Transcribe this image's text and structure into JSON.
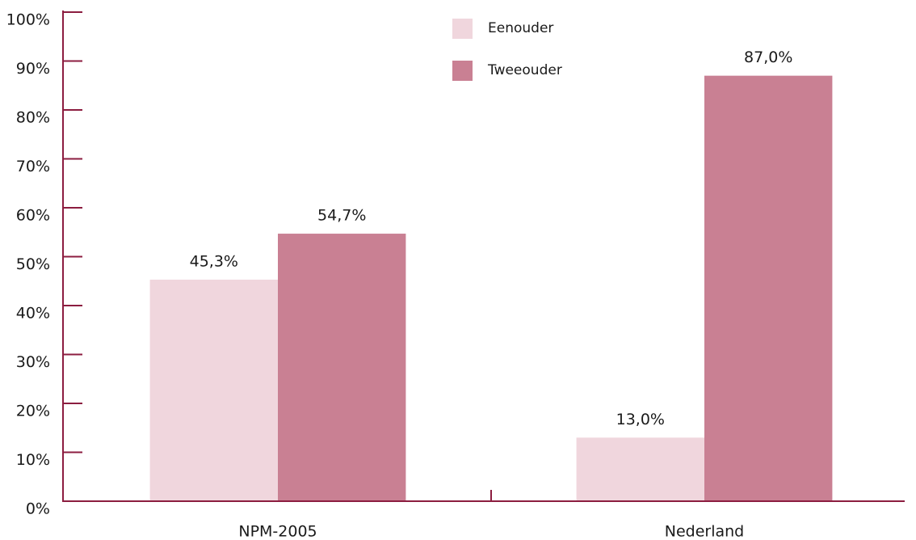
{
  "chart_data": {
    "type": "bar",
    "categories": [
      "NPM-2005",
      "Nederland"
    ],
    "series": [
      {
        "name": "Eenouder",
        "color": "#f0d6dd",
        "values": [
          45.3,
          13.0
        ],
        "value_labels": [
          "45,3%",
          "13,0%"
        ]
      },
      {
        "name": "Tweeouder",
        "color": "#c98093",
        "values": [
          54.7,
          87.0
        ],
        "value_labels": [
          "54,7%",
          "87,0%"
        ]
      }
    ],
    "ylim": [
      0,
      100
    ],
    "yticks": [
      {
        "value": 0,
        "label": "0%"
      },
      {
        "value": 10,
        "label": "10%"
      },
      {
        "value": 20,
        "label": "20%"
      },
      {
        "value": 30,
        "label": "30%"
      },
      {
        "value": 40,
        "label": "40%"
      },
      {
        "value": 50,
        "label": "50%"
      },
      {
        "value": 60,
        "label": "60%"
      },
      {
        "value": 70,
        "label": "70%"
      },
      {
        "value": 80,
        "label": "80%"
      },
      {
        "value": 90,
        "label": "90%"
      },
      {
        "value": 100,
        "label": "100%"
      }
    ],
    "legend": "top-right"
  }
}
